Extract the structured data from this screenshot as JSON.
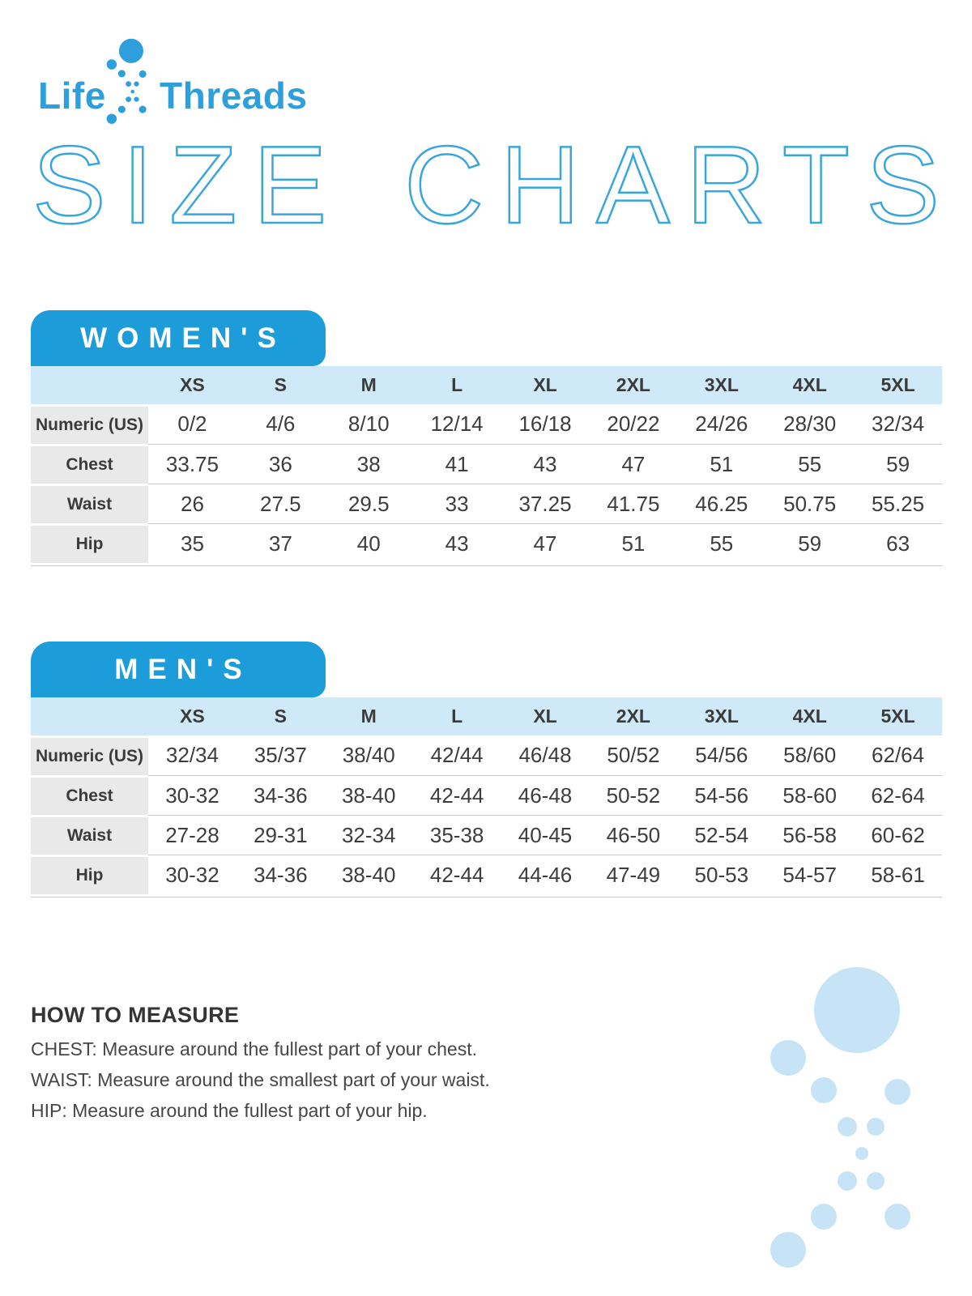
{
  "brand": {
    "life": "Life",
    "threads": "Threads"
  },
  "headline": {
    "text": "SIZE CHARTS"
  },
  "tables": [
    {
      "id": "womens",
      "tab_label": "WOMEN'S",
      "columns": [
        "XS",
        "S",
        "M",
        "L",
        "XL",
        "2XL",
        "3XL",
        "4XL",
        "5XL"
      ],
      "rows": [
        {
          "label": "Numeric (US)",
          "values": [
            "0/2",
            "4/6",
            "8/10",
            "12/14",
            "16/18",
            "20/22",
            "24/26",
            "28/30",
            "32/34"
          ]
        },
        {
          "label": "Chest",
          "values": [
            "33.75",
            "36",
            "38",
            "41",
            "43",
            "47",
            "51",
            "55",
            "59"
          ]
        },
        {
          "label": "Waist",
          "values": [
            "26",
            "27.5",
            "29.5",
            "33",
            "37.25",
            "41.75",
            "46.25",
            "50.75",
            "55.25"
          ]
        },
        {
          "label": "Hip",
          "values": [
            "35",
            "37",
            "40",
            "43",
            "47",
            "51",
            "55",
            "59",
            "63"
          ]
        }
      ]
    },
    {
      "id": "mens",
      "tab_label": "MEN'S",
      "columns": [
        "XS",
        "S",
        "M",
        "L",
        "XL",
        "2XL",
        "3XL",
        "4XL",
        "5XL"
      ],
      "rows": [
        {
          "label": "Numeric (US)",
          "values": [
            "32/34",
            "35/37",
            "38/40",
            "42/44",
            "46/48",
            "50/52",
            "54/56",
            "58/60",
            "62/64"
          ]
        },
        {
          "label": "Chest",
          "values": [
            "30-32",
            "34-36",
            "38-40",
            "42-44",
            "46-48",
            "50-52",
            "54-56",
            "58-60",
            "62-64"
          ]
        },
        {
          "label": "Waist",
          "values": [
            "27-28",
            "29-31",
            "32-34",
            "35-38",
            "40-45",
            "46-50",
            "52-54",
            "56-58",
            "60-62"
          ]
        },
        {
          "label": "Hip",
          "values": [
            "30-32",
            "34-36",
            "38-40",
            "42-44",
            "44-46",
            "47-49",
            "50-53",
            "54-57",
            "58-61"
          ]
        }
      ]
    }
  ],
  "measure": {
    "title": "HOW TO MEASURE",
    "lines": [
      "CHEST: Measure around the fullest part of your chest.",
      "WAIST: Measure around the smallest part of your waist.",
      "HIP: Measure around the fullest part of your hip."
    ]
  },
  "colors": {
    "brand_blue": "#1c9cd8",
    "logo_blue": "#2f9fdb",
    "outline_blue": "#38a6dc",
    "header_row_blue": "#cfe9f8",
    "label_gray": "#e9e9e9",
    "separator_gray": "#c9c9c9",
    "text_dark": "#3b3b3b",
    "decoration_blue": "#c7e4f6"
  }
}
